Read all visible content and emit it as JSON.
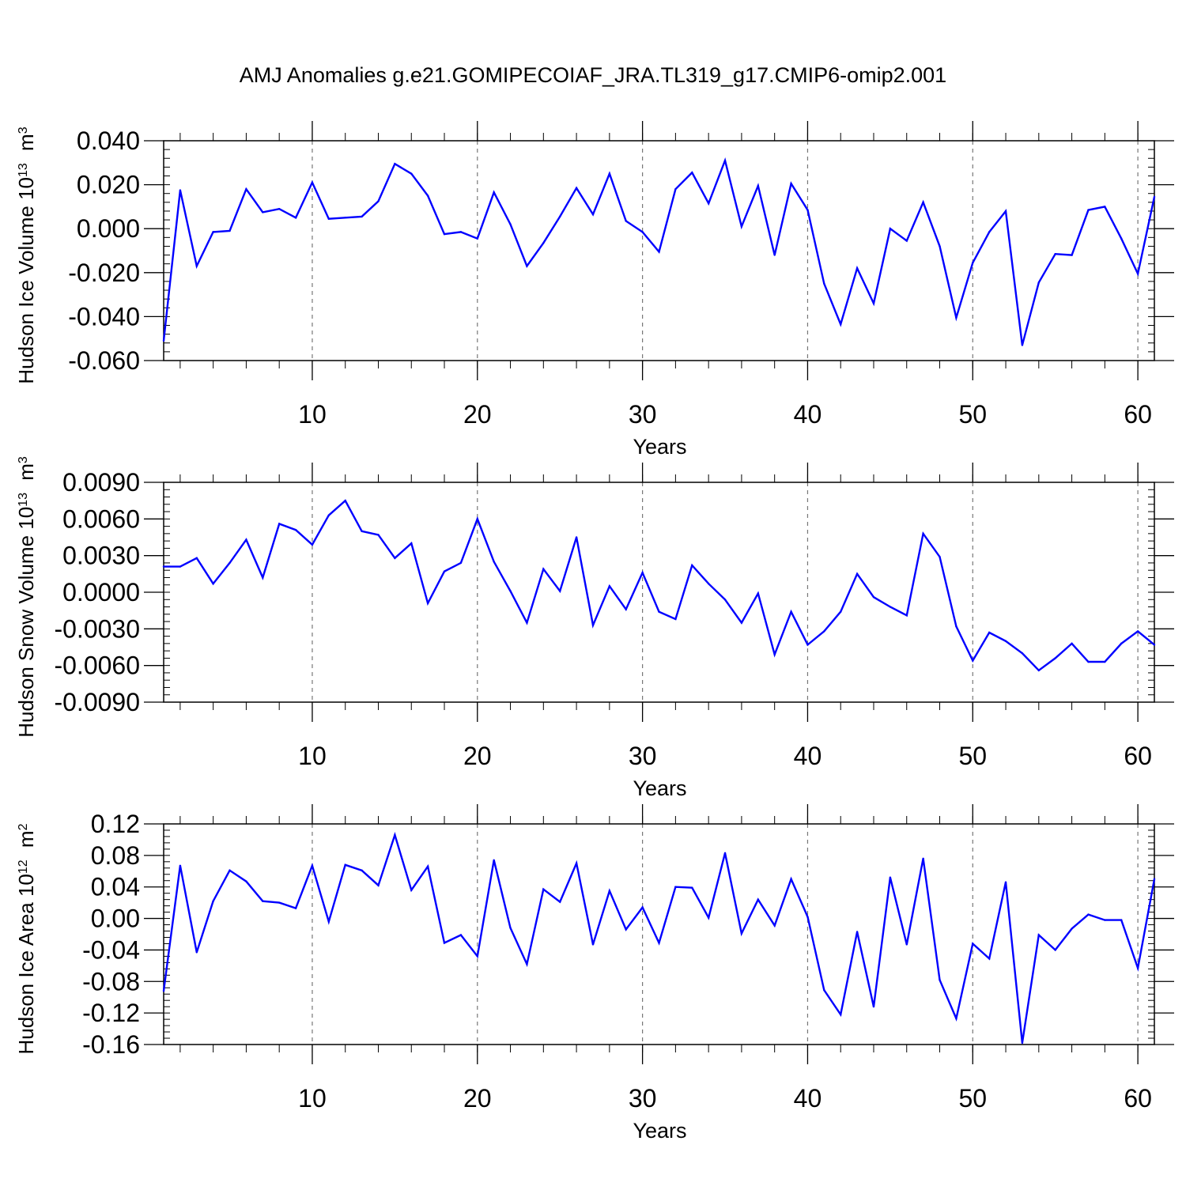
{
  "title": "AMJ Anomalies g.e21.GOMIPECOIAF_JRA.TL319_g17.CMIP6-omip2.001",
  "colors": {
    "line": "#0000ff",
    "axis": "#000000",
    "grid": "#777777"
  },
  "chart_data": [
    {
      "type": "line",
      "ylabel_main": "Hudson Ice Volume 10",
      "ylabel_exp": "13",
      "ylabel_unit": "m",
      "ylabel_unit_exp": "3",
      "xlabel": "Years",
      "xlim": [
        1,
        61
      ],
      "ylim": [
        -0.06,
        0.04
      ],
      "yticks": [
        "0.040",
        "0.020",
        "0.000",
        "-0.020",
        "-0.040",
        "-0.060"
      ],
      "ytick_values": [
        0.04,
        0.02,
        0.0,
        -0.02,
        -0.04,
        -0.06
      ],
      "xticks": [
        "10",
        "20",
        "30",
        "40",
        "50",
        "60"
      ],
      "xtick_values": [
        10,
        20,
        30,
        40,
        50,
        60
      ],
      "grid": "vertical dashed at major x ticks",
      "x": [
        1,
        2,
        3,
        4,
        5,
        6,
        7,
        8,
        9,
        10,
        11,
        12,
        13,
        14,
        15,
        16,
        17,
        18,
        19,
        20,
        21,
        22,
        23,
        24,
        25,
        26,
        27,
        28,
        29,
        30,
        31,
        32,
        33,
        34,
        35,
        36,
        37,
        38,
        39,
        40,
        41,
        42,
        43,
        44,
        45,
        46,
        47,
        48,
        49,
        50,
        51,
        52,
        53,
        54,
        55,
        56,
        57,
        58,
        59,
        60,
        61
      ],
      "values": [
        -0.051,
        0.0175,
        -0.017,
        -0.0015,
        -0.001,
        0.018,
        0.0075,
        0.009,
        0.005,
        0.021,
        0.0045,
        0.005,
        0.0055,
        0.0125,
        0.0295,
        0.025,
        0.015,
        -0.0025,
        -0.0015,
        -0.0045,
        0.0165,
        0.002,
        -0.017,
        -0.0065,
        0.0055,
        0.0185,
        0.0065,
        0.025,
        0.0035,
        -0.0015,
        -0.0105,
        0.018,
        0.0255,
        0.0115,
        0.031,
        0.001,
        0.0195,
        -0.012,
        0.0205,
        0.0085,
        -0.025,
        -0.0435,
        -0.018,
        -0.034,
        0.0,
        -0.0055,
        0.012,
        -0.008,
        -0.0405,
        -0.0155,
        -0.0015,
        0.008,
        -0.053,
        -0.0245,
        -0.0115,
        -0.012,
        0.0085,
        0.01,
        -0.0045,
        -0.0205,
        0.0145
      ]
    },
    {
      "type": "line",
      "ylabel_main": "Hudson Snow Volume 10",
      "ylabel_exp": "13",
      "ylabel_unit": "m",
      "ylabel_unit_exp": "3",
      "xlabel": "Years",
      "xlim": [
        1,
        61
      ],
      "ylim": [
        -0.009,
        0.009
      ],
      "yticks": [
        "0.0090",
        "0.0060",
        "0.0030",
        "0.0000",
        "-0.0030",
        "-0.0060",
        "-0.0090"
      ],
      "ytick_values": [
        0.009,
        0.006,
        0.003,
        0.0,
        -0.003,
        -0.006,
        -0.009
      ],
      "xticks": [
        "10",
        "20",
        "30",
        "40",
        "50",
        "60"
      ],
      "xtick_values": [
        10,
        20,
        30,
        40,
        50,
        60
      ],
      "grid": "vertical dashed at major x ticks",
      "x": [
        1,
        2,
        3,
        4,
        5,
        6,
        7,
        8,
        9,
        10,
        11,
        12,
        13,
        14,
        15,
        16,
        17,
        18,
        19,
        20,
        21,
        22,
        23,
        24,
        25,
        26,
        27,
        28,
        29,
        30,
        31,
        32,
        33,
        34,
        35,
        36,
        37,
        38,
        39,
        40,
        41,
        42,
        43,
        44,
        45,
        46,
        47,
        48,
        49,
        50,
        51,
        52,
        53,
        54,
        55,
        56,
        57,
        58,
        59,
        60,
        61
      ],
      "values": [
        0.0021,
        0.0021,
        0.0028,
        0.0007,
        0.0024,
        0.0043,
        0.0012,
        0.0056,
        0.0051,
        0.0039,
        0.0063,
        0.0075,
        0.005,
        0.0047,
        0.0028,
        0.004,
        -0.0009,
        0.0017,
        0.0024,
        0.006,
        0.0025,
        0.0001,
        -0.0025,
        0.0019,
        0.0001,
        0.0045,
        -0.0027,
        0.0005,
        -0.0014,
        0.0016,
        -0.0016,
        -0.0022,
        0.0022,
        0.0007,
        -0.0006,
        -0.0025,
        -0.0001,
        -0.0051,
        -0.0016,
        -0.0043,
        -0.0032,
        -0.0016,
        0.0015,
        -0.0004,
        -0.0012,
        -0.0019,
        0.0048,
        0.0029,
        -0.0028,
        -0.0056,
        -0.0033,
        -0.004,
        -0.005,
        -0.0064,
        -0.0054,
        -0.0042,
        -0.0057,
        -0.0057,
        -0.0042,
        -0.0032,
        -0.0043
      ]
    },
    {
      "type": "line",
      "ylabel_main": "Hudson Ice Area 10",
      "ylabel_exp": "12",
      "ylabel_unit": "m",
      "ylabel_unit_exp": "2",
      "xlabel": "Years",
      "xlim": [
        1,
        61
      ],
      "ylim": [
        -0.16,
        0.12
      ],
      "yticks": [
        "0.12",
        "0.08",
        "0.04",
        "0.00",
        "-0.04",
        "-0.08",
        "-0.12",
        "-0.16"
      ],
      "ytick_values": [
        0.12,
        0.08,
        0.04,
        0.0,
        -0.04,
        -0.08,
        -0.12,
        -0.16
      ],
      "xticks": [
        "10",
        "20",
        "30",
        "40",
        "50",
        "60"
      ],
      "xtick_values": [
        10,
        20,
        30,
        40,
        50,
        60
      ],
      "grid": "vertical dashed at major x ticks",
      "x": [
        1,
        2,
        3,
        4,
        5,
        6,
        7,
        8,
        9,
        10,
        11,
        12,
        13,
        14,
        15,
        16,
        17,
        18,
        19,
        20,
        21,
        22,
        23,
        24,
        25,
        26,
        27,
        28,
        29,
        30,
        31,
        32,
        33,
        34,
        35,
        36,
        37,
        38,
        39,
        40,
        41,
        42,
        43,
        44,
        45,
        46,
        47,
        48,
        49,
        50,
        51,
        52,
        53,
        54,
        55,
        56,
        57,
        58,
        59,
        60,
        61
      ],
      "values": [
        -0.092,
        0.067,
        -0.043,
        0.022,
        0.061,
        0.047,
        0.022,
        0.02,
        0.013,
        0.067,
        -0.004,
        0.068,
        0.061,
        0.042,
        0.106,
        0.036,
        0.066,
        -0.031,
        -0.021,
        -0.048,
        0.074,
        -0.012,
        -0.058,
        0.037,
        0.021,
        0.07,
        -0.033,
        0.035,
        -0.014,
        0.014,
        -0.031,
        0.04,
        0.039,
        0.001,
        0.083,
        -0.019,
        0.024,
        -0.009,
        0.05,
        0.002,
        -0.091,
        -0.122,
        -0.017,
        -0.112,
        0.052,
        -0.033,
        0.076,
        -0.078,
        -0.127,
        -0.032,
        -0.051,
        0.046,
        -0.158,
        -0.021,
        -0.04,
        -0.013,
        0.005,
        -0.002,
        -0.002,
        -0.063,
        0.05
      ]
    }
  ]
}
